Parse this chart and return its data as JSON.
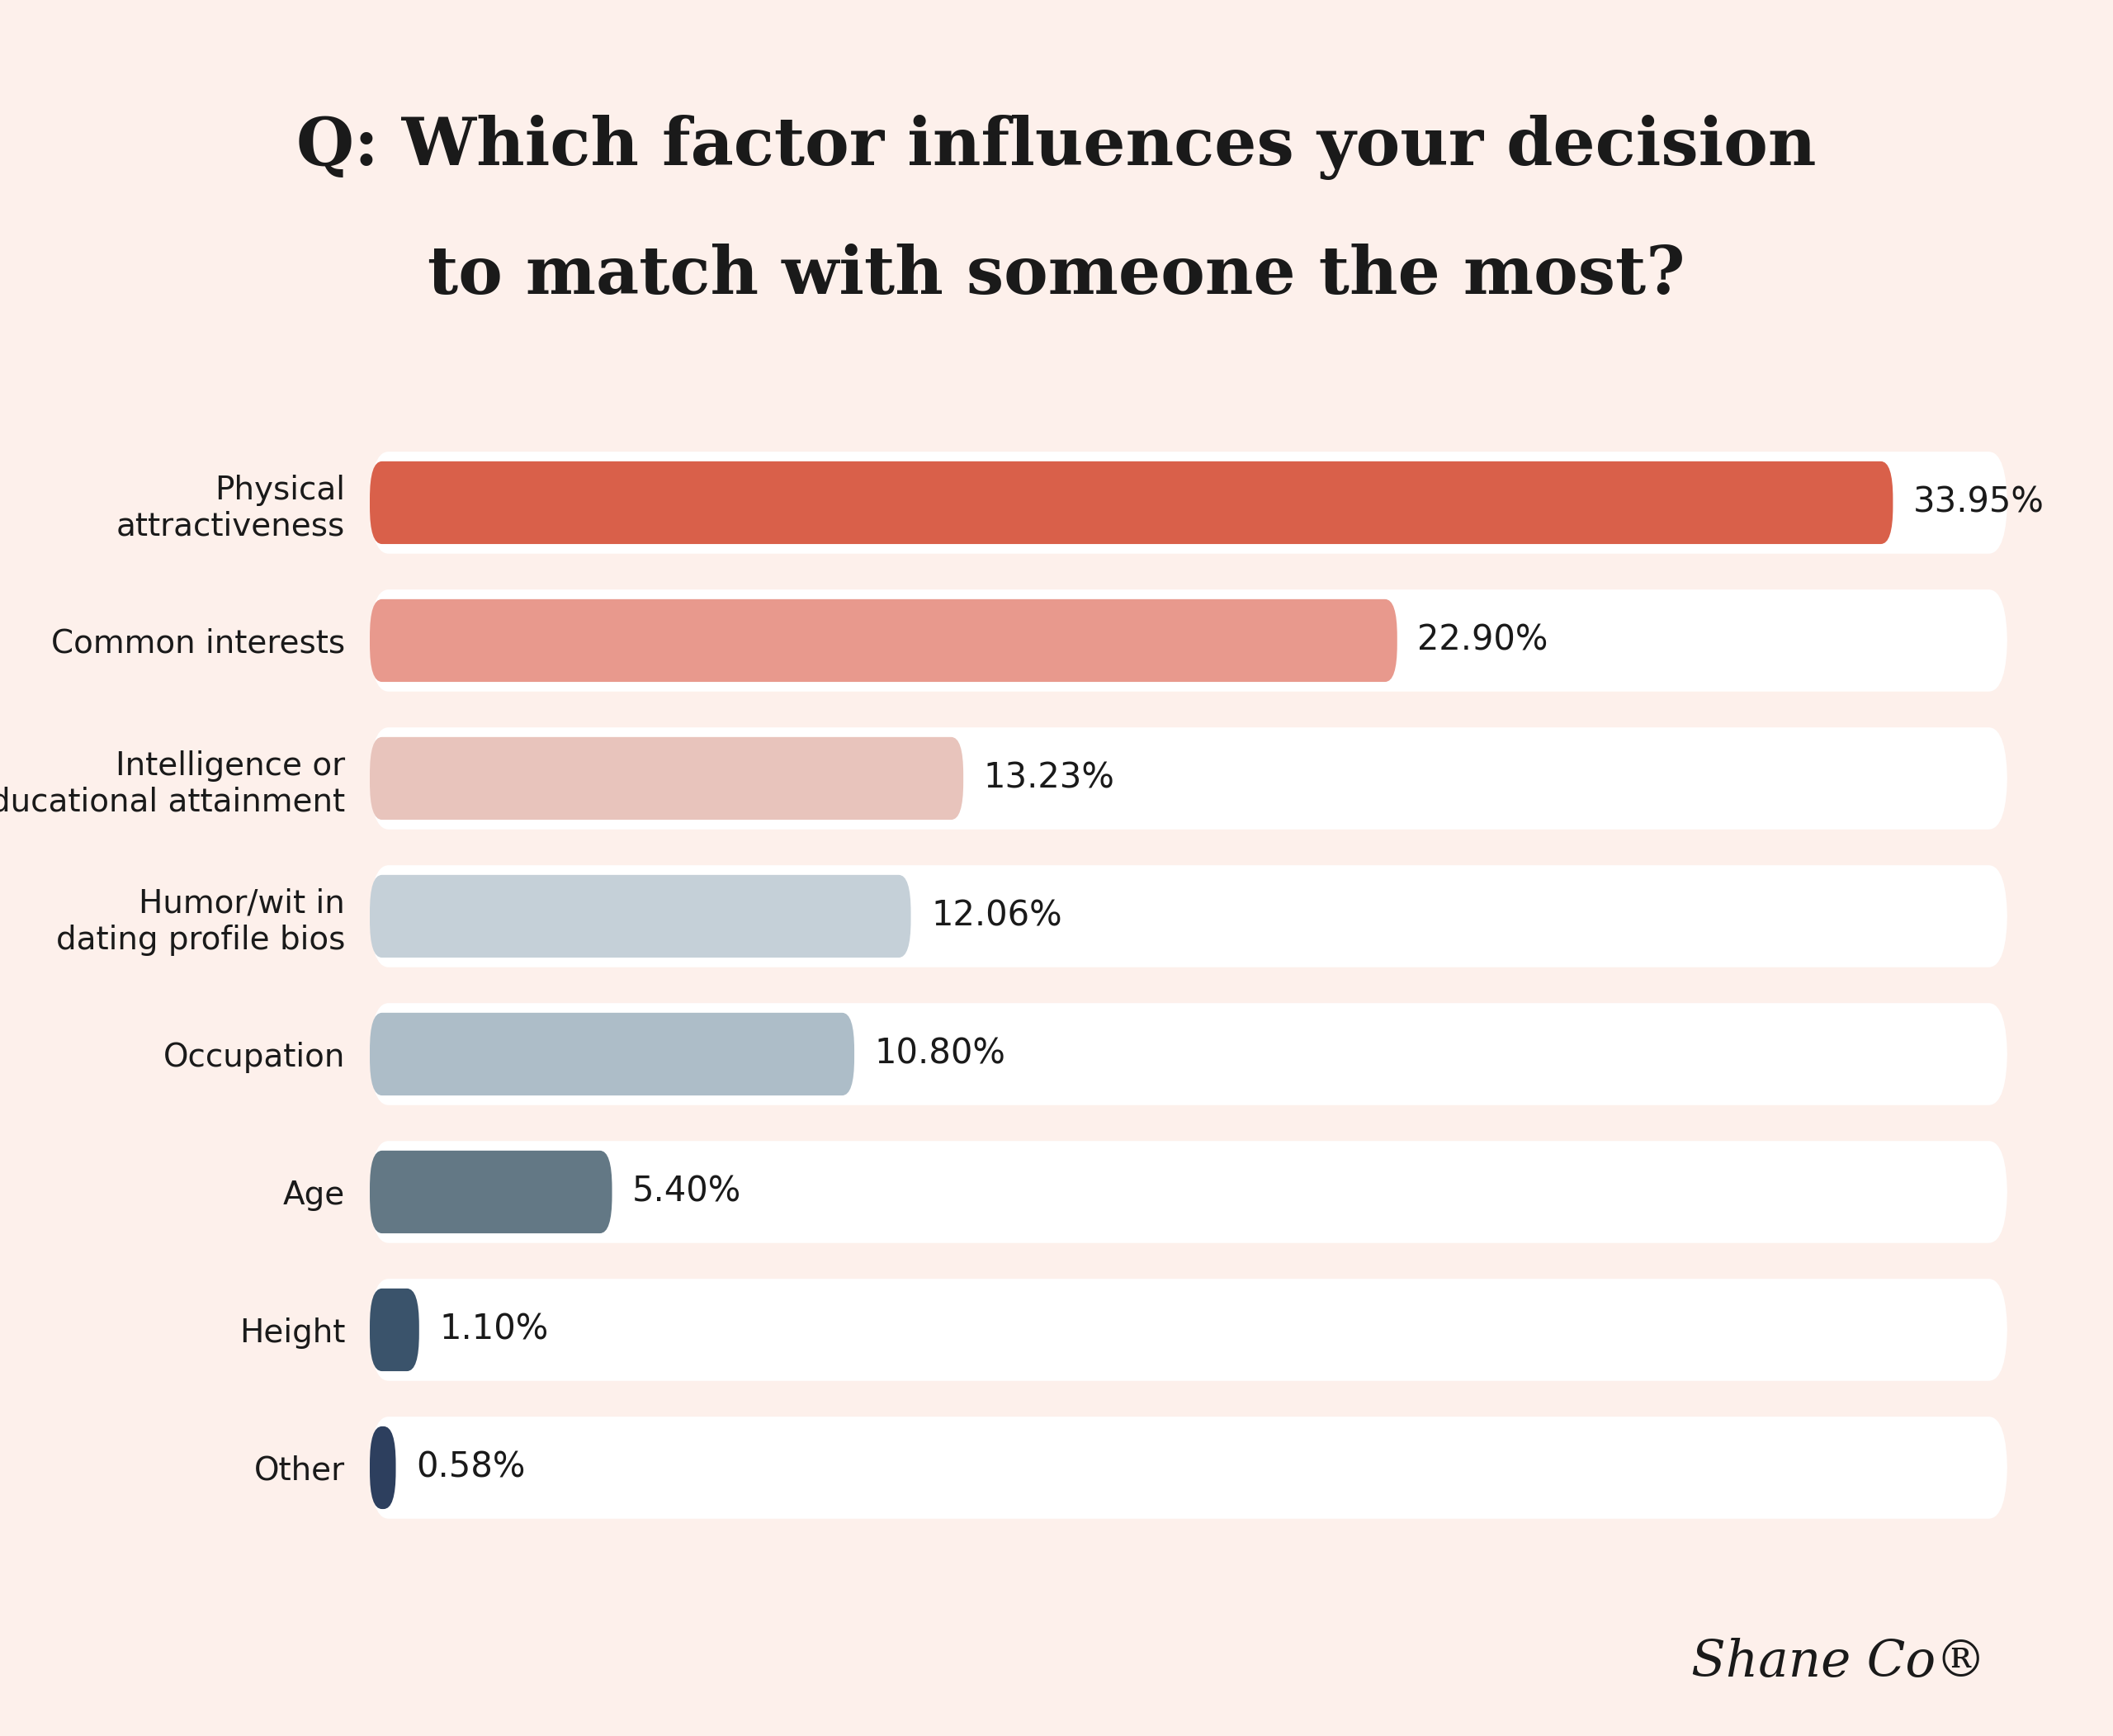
{
  "title_line1": "Q: Which factor influences your decision",
  "title_line2": "to match with someone the most?",
  "categories": [
    "Physical\nattractiveness",
    "Common interests",
    "Intelligence or\neducational attainment",
    "Humor/wit in\ndating profile bios",
    "Occupation",
    "Age",
    "Height",
    "Other"
  ],
  "values": [
    33.95,
    22.9,
    13.23,
    12.06,
    10.8,
    5.4,
    1.1,
    0.58
  ],
  "labels": [
    "33.95%",
    "22.90%",
    "13.23%",
    "12.06%",
    "10.80%",
    "5.40%",
    "1.10%",
    "0.58%"
  ],
  "bar_colors": [
    "#d9604a",
    "#e8998d",
    "#e8c4bc",
    "#c5d0d8",
    "#adbdc8",
    "#637885",
    "#3a536b",
    "#2d3f5e"
  ],
  "bg_color": "#fdf0eb",
  "title_box_color": "#fce8e0",
  "bar_bg_color": "#ffffff",
  "footer_color": "#e8a898",
  "text_color": "#1a1a1a",
  "bar_label_color": "#1a1a1a",
  "bar_height": 0.6
}
